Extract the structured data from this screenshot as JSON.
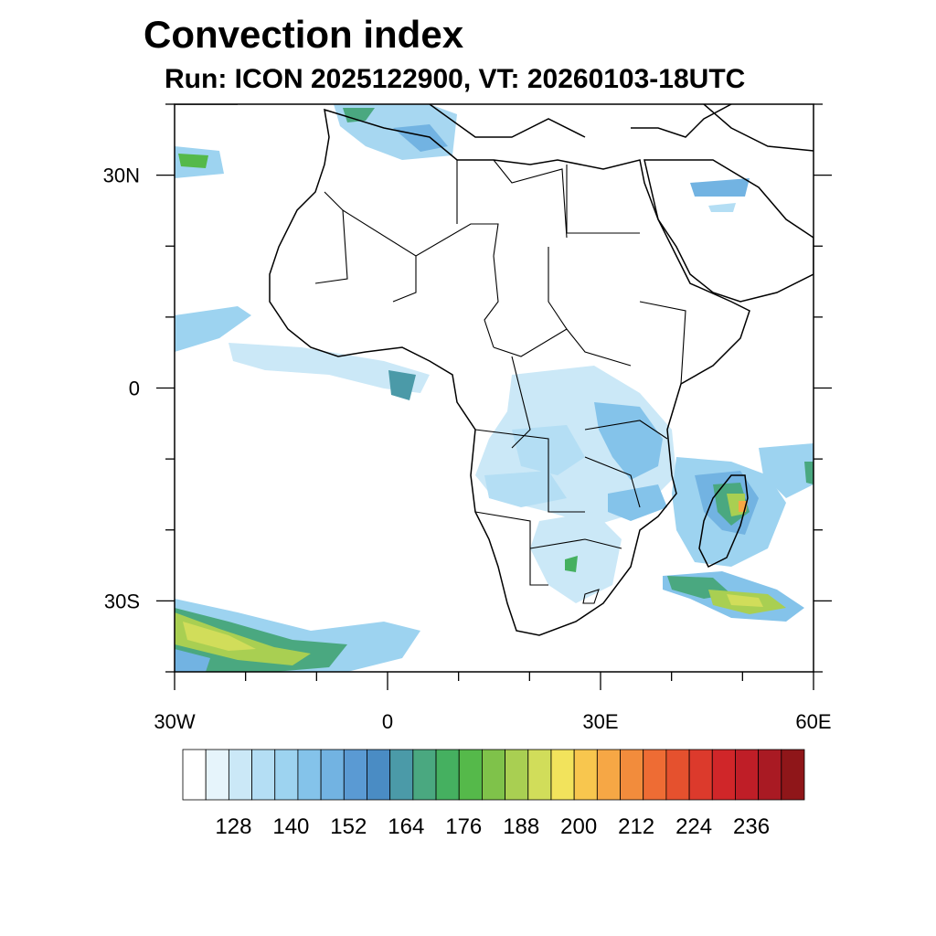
{
  "title": "Convection index",
  "subtitle": "Run: ICON 2025122900,  VT: 20260103-18UTC",
  "map": {
    "region": "Africa",
    "lon_range_deg": [
      -30,
      60
    ],
    "lat_range_deg": [
      -40,
      40
    ],
    "x_ticks": [
      {
        "label": "30W",
        "lon": -30
      },
      {
        "label": "0",
        "lon": 0
      },
      {
        "label": "30E",
        "lon": 30
      },
      {
        "label": "60E",
        "lon": 60
      }
    ],
    "y_ticks": [
      {
        "label": "30N",
        "lat": 30
      },
      {
        "label": "0",
        "lat": 0
      },
      {
        "label": "30S",
        "lat": -30
      }
    ]
  },
  "colorbar": {
    "colors": [
      "#ffffff",
      "#e6f4fb",
      "#cbe8f7",
      "#b4def4",
      "#9dd3f0",
      "#84c3ea",
      "#72b3e2",
      "#5a9ad3",
      "#4a8cc4",
      "#4b9aa8",
      "#4aa880",
      "#45b060",
      "#55b94a",
      "#7fc24a",
      "#a9cf52",
      "#d1dd5a",
      "#f2e35c",
      "#f8c64e",
      "#f6a745",
      "#f28c3c",
      "#ee6c34",
      "#e5512e",
      "#dc3a2c",
      "#d02629",
      "#bf1e27",
      "#a91a23",
      "#8f1619"
    ],
    "labels": [
      "128",
      "140",
      "152",
      "164",
      "176",
      "188",
      "200",
      "212",
      "224",
      "236"
    ]
  }
}
